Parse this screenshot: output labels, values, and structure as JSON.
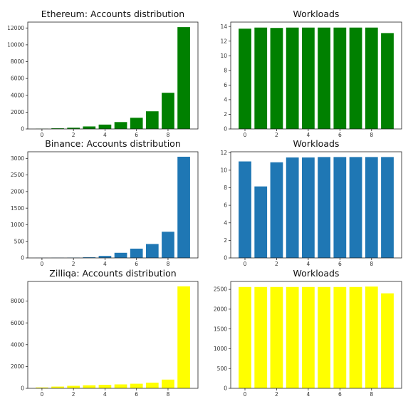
{
  "chart_data": [
    {
      "id": "eth-accounts",
      "type": "bar",
      "title": "Ethereum: Accounts distribution",
      "color": "#008000",
      "x": [
        0,
        1,
        2,
        3,
        4,
        5,
        6,
        7,
        8,
        9
      ],
      "values": [
        20,
        80,
        150,
        300,
        520,
        820,
        1330,
        2100,
        4300,
        12100
      ],
      "xlim": [
        -0.9,
        9.9
      ],
      "ylim": [
        0,
        12700
      ],
      "xticks": [
        0,
        2,
        4,
        6,
        8
      ],
      "yticks": [
        0,
        2000,
        4000,
        6000,
        8000,
        10000,
        12000
      ]
    },
    {
      "id": "eth-workloads",
      "type": "bar",
      "title": "Workloads",
      "color": "#008000",
      "x": [
        0,
        1,
        2,
        3,
        4,
        5,
        6,
        7,
        8,
        9
      ],
      "values": [
        13.7,
        13.85,
        13.8,
        13.85,
        13.85,
        13.85,
        13.85,
        13.85,
        13.85,
        13.1
      ],
      "xlim": [
        -0.9,
        9.9
      ],
      "ylim": [
        0,
        14.6
      ],
      "xticks": [
        0,
        2,
        4,
        6,
        8
      ],
      "yticks": [
        0,
        2,
        4,
        6,
        8,
        10,
        12,
        14
      ]
    },
    {
      "id": "bnb-accounts",
      "type": "bar",
      "title": "Binance: Accounts distribution",
      "color": "#1f77b4",
      "x": [
        0,
        1,
        2,
        3,
        4,
        5,
        6,
        7,
        8,
        9
      ],
      "values": [
        2,
        5,
        10,
        20,
        60,
        155,
        280,
        420,
        790,
        3050
      ],
      "xlim": [
        -0.9,
        9.9
      ],
      "ylim": [
        0,
        3200
      ],
      "xticks": [
        0,
        2,
        4,
        6,
        8
      ],
      "yticks": [
        0,
        500,
        1000,
        1500,
        2000,
        2500,
        3000
      ]
    },
    {
      "id": "bnb-workloads",
      "type": "bar",
      "title": "Workloads",
      "color": "#1f77b4",
      "x": [
        0,
        1,
        2,
        3,
        4,
        5,
        6,
        7,
        8,
        9
      ],
      "values": [
        11.0,
        8.15,
        10.9,
        11.45,
        11.45,
        11.5,
        11.5,
        11.5,
        11.5,
        11.5
      ],
      "xlim": [
        -0.9,
        9.9
      ],
      "ylim": [
        0,
        12.1
      ],
      "xticks": [
        0,
        2,
        4,
        6,
        8
      ],
      "yticks": [
        0,
        2,
        4,
        6,
        8,
        10,
        12
      ]
    },
    {
      "id": "zil-accounts",
      "type": "bar",
      "title": "Zilliqa: Accounts distribution",
      "color": "#ffff00",
      "x": [
        0,
        1,
        2,
        3,
        4,
        5,
        6,
        7,
        8,
        9
      ],
      "values": [
        80,
        160,
        230,
        280,
        320,
        360,
        420,
        520,
        800,
        9350
      ],
      "xlim": [
        -0.9,
        9.9
      ],
      "ylim": [
        0,
        9800
      ],
      "xticks": [
        0,
        2,
        4,
        6,
        8
      ],
      "yticks": [
        0,
        2000,
        4000,
        6000,
        8000
      ]
    },
    {
      "id": "zil-workloads",
      "type": "bar",
      "title": "Workloads",
      "color": "#ffff00",
      "x": [
        0,
        1,
        2,
        3,
        4,
        5,
        6,
        7,
        8,
        9
      ],
      "values": [
        2560,
        2560,
        2560,
        2560,
        2560,
        2560,
        2560,
        2560,
        2570,
        2400
      ],
      "xlim": [
        -0.9,
        9.9
      ],
      "ylim": [
        0,
        2700
      ],
      "xticks": [
        0,
        2,
        4,
        6,
        8
      ],
      "yticks": [
        0,
        500,
        1000,
        1500,
        2000,
        2500
      ]
    }
  ]
}
